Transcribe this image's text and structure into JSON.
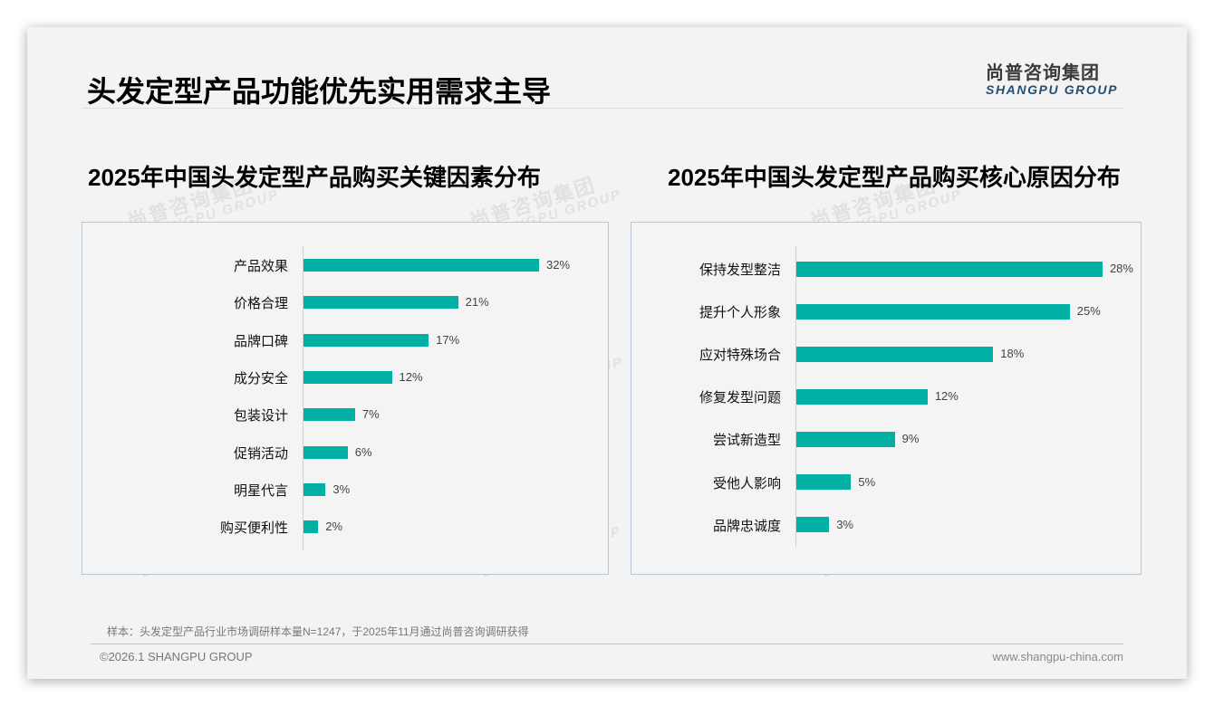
{
  "header": {
    "title": "头发定型产品功能优先实用需求主导",
    "logo_cn": "尚普咨询集团",
    "logo_en": "SHANGPU GROUP"
  },
  "watermark": {
    "cn": "尚普咨询集团",
    "en": "SHANGPU GROUP"
  },
  "colors": {
    "bar": "#00b0a4",
    "accent": "#1f4e79"
  },
  "chart_data": [
    {
      "type": "bar",
      "orientation": "horizontal",
      "title": "2025年中国头发定型产品购买关键因素分布",
      "categories": [
        "产品效果",
        "价格合理",
        "品牌口碑",
        "成分安全",
        "包装设计",
        "促销活动",
        "明星代言",
        "购买便利性"
      ],
      "values": [
        32,
        21,
        17,
        12,
        7,
        6,
        3,
        2
      ],
      "labels": [
        "32%",
        "21%",
        "17%",
        "12%",
        "7%",
        "6%",
        "3%",
        "2%"
      ],
      "xlabel": "",
      "ylabel": "",
      "unit": "%",
      "grid": false,
      "legend": "none"
    },
    {
      "type": "bar",
      "orientation": "horizontal",
      "title": "2025年中国头发定型产品购买核心原因分布",
      "categories": [
        "保持发型整洁",
        "提升个人形象",
        "应对特殊场合",
        "修复发型问题",
        "尝试新造型",
        "受他人影响",
        "品牌忠诚度"
      ],
      "values": [
        28,
        25,
        18,
        12,
        9,
        5,
        3
      ],
      "labels": [
        "28%",
        "25%",
        "18%",
        "12%",
        "9%",
        "5%",
        "3%"
      ],
      "xlabel": "",
      "ylabel": "",
      "unit": "%",
      "grid": false,
      "legend": "none"
    }
  ],
  "footer": {
    "note": "样本：头发定型产品行业市场调研样本量N=1247，于2025年11月通过尚普咨询调研获得",
    "copyright": "©2026.1 SHANGPU GROUP",
    "website": "www.shangpu-china.com"
  }
}
